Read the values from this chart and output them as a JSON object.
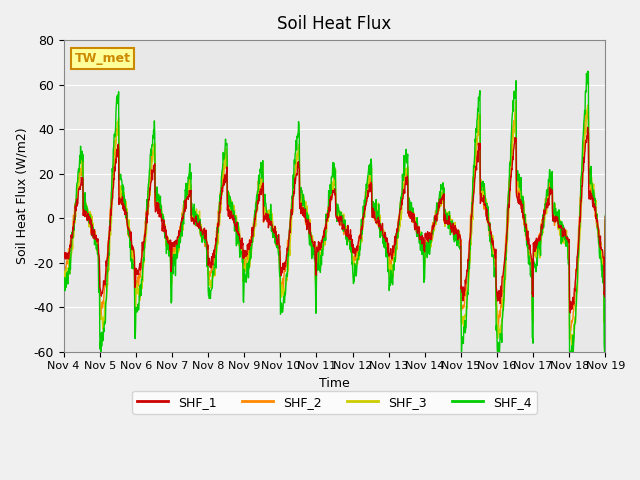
{
  "title": "Soil Heat Flux",
  "ylabel": "Soil Heat Flux (W/m2)",
  "xlabel": "Time",
  "ylim": [
    -60,
    80
  ],
  "yticks": [
    -60,
    -40,
    -20,
    0,
    20,
    40,
    60,
    80
  ],
  "colors": {
    "SHF_1": "#cc0000",
    "SHF_2": "#ff8800",
    "SHF_3": "#cccc00",
    "SHF_4": "#00cc00"
  },
  "background_color": "#e8e8e8",
  "annotation_text": "TW_met",
  "annotation_box_color": "#ffff99",
  "annotation_box_edge": "#cc8800",
  "n_days": 15,
  "points_per_day": 96,
  "start_day": 4,
  "end_day": 19,
  "xtick_labels": [
    "Nov 4",
    "Nov 5",
    "Nov 6",
    "Nov 7",
    "Nov 8",
    "Nov 9",
    "Nov 10",
    "Nov 11",
    "Nov 12",
    "Nov 13",
    "Nov 14",
    "Nov 15",
    "Nov 16",
    "Nov 17",
    "Nov 18",
    "Nov 19"
  ],
  "linewidth": 1.0
}
